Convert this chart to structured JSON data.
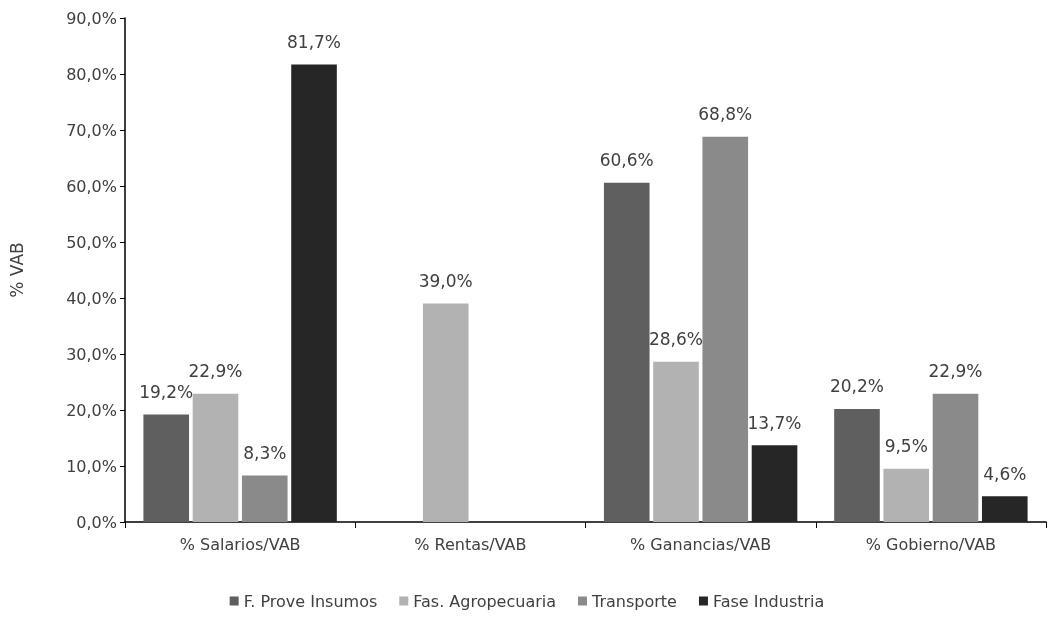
{
  "chart_data": {
    "type": "bar",
    "ylabel": "% VAB",
    "categories": [
      "% Salarios/VAB",
      "% Rentas/VAB",
      "% Ganancias/VAB",
      "% Gobierno/VAB"
    ],
    "series": [
      {
        "name": "F. Prove Insumos",
        "color": "#5f5f5f",
        "values": [
          19.2,
          null,
          60.6,
          20.2
        ],
        "value_labels": [
          "19,2%",
          null,
          "60,6%",
          "20,2%"
        ]
      },
      {
        "name": "Fas. Agropecuaria",
        "color": "#b2b2b2",
        "values": [
          22.9,
          39.0,
          28.6,
          9.5
        ],
        "value_labels": [
          "22,9%",
          "39,0%",
          "28,6%",
          "9,5%"
        ]
      },
      {
        "name": "Transporte",
        "color": "#8a8a8a",
        "values": [
          8.3,
          null,
          68.8,
          22.9
        ],
        "value_labels": [
          "8,3%",
          null,
          "68,8%",
          "22,9%"
        ]
      },
      {
        "name": "Fase Industria",
        "color": "#262626",
        "values": [
          81.7,
          null,
          13.7,
          4.6
        ],
        "value_labels": [
          "81,7%",
          null,
          "13,7%",
          "4,6%"
        ]
      }
    ],
    "ylim": [
      0,
      90
    ],
    "yticks": [
      {
        "value": 0,
        "label": "0,0%"
      },
      {
        "value": 10,
        "label": "10,0%"
      },
      {
        "value": 20,
        "label": "20,0%"
      },
      {
        "value": 30,
        "label": "30,0%"
      },
      {
        "value": 40,
        "label": "40,0%"
      },
      {
        "value": 50,
        "label": "50,0%"
      },
      {
        "value": 60,
        "label": "60,0%"
      },
      {
        "value": 70,
        "label": "70,0%"
      },
      {
        "value": 80,
        "label": "80,0%"
      },
      {
        "value": 90,
        "label": "90,0%"
      }
    ],
    "grid": false,
    "legend": "bottom"
  }
}
